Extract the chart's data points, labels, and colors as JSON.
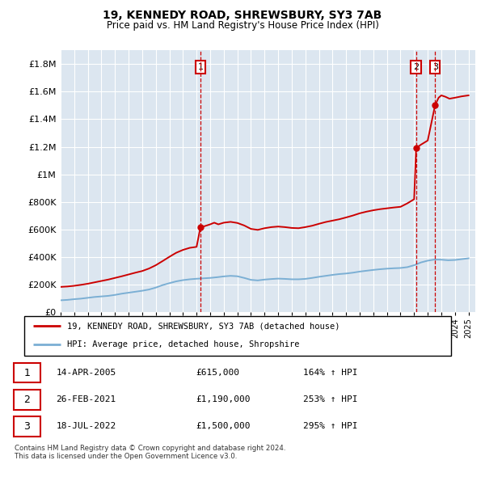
{
  "title1": "19, KENNEDY ROAD, SHREWSBURY, SY3 7AB",
  "title2": "Price paid vs. HM Land Registry's House Price Index (HPI)",
  "ytick_values": [
    0,
    200000,
    400000,
    600000,
    800000,
    1000000,
    1200000,
    1400000,
    1600000,
    1800000
  ],
  "ytick_labels": [
    "£0",
    "£200K",
    "£400K",
    "£600K",
    "£800K",
    "£1M",
    "£1.2M",
    "£1.4M",
    "£1.6M",
    "£1.8M"
  ],
  "ylim": [
    0,
    1900000
  ],
  "xlim_start": 1995.0,
  "xlim_end": 2025.5,
  "background_color": "#dce6f0",
  "grid_color": "#ffffff",
  "hpi_color": "#7bafd4",
  "price_color": "#cc0000",
  "annotation_box_color": "#cc0000",
  "annotations": [
    {
      "num": 1,
      "x_year": 2005.28,
      "y": 615000,
      "label": "1"
    },
    {
      "num": 2,
      "x_year": 2021.15,
      "y": 1190000,
      "label": "2"
    },
    {
      "num": 3,
      "x_year": 2022.54,
      "y": 1500000,
      "label": "3"
    }
  ],
  "legend_entries": [
    {
      "label": "19, KENNEDY ROAD, SHREWSBURY, SY3 7AB (detached house)",
      "color": "#cc0000"
    },
    {
      "label": "HPI: Average price, detached house, Shropshire",
      "color": "#7bafd4"
    }
  ],
  "table_rows": [
    {
      "num": "1",
      "date": "14-APR-2005",
      "price": "£615,000",
      "change": "164% ↑ HPI"
    },
    {
      "num": "2",
      "date": "26-FEB-2021",
      "price": "£1,190,000",
      "change": "253% ↑ HPI"
    },
    {
      "num": "3",
      "date": "18-JUL-2022",
      "price": "£1,500,000",
      "change": "295% ↑ HPI"
    }
  ],
  "footnote": "Contains HM Land Registry data © Crown copyright and database right 2024.\nThis data is licensed under the Open Government Licence v3.0.",
  "hpi_data": {
    "years": [
      1995.0,
      1995.5,
      1996.0,
      1996.5,
      1997.0,
      1997.5,
      1998.0,
      1998.5,
      1999.0,
      1999.5,
      2000.0,
      2000.5,
      2001.0,
      2001.5,
      2002.0,
      2002.5,
      2003.0,
      2003.5,
      2004.0,
      2004.5,
      2005.0,
      2005.5,
      2006.0,
      2006.5,
      2007.0,
      2007.5,
      2008.0,
      2008.5,
      2009.0,
      2009.5,
      2010.0,
      2010.5,
      2011.0,
      2011.5,
      2012.0,
      2012.5,
      2013.0,
      2013.5,
      2014.0,
      2014.5,
      2015.0,
      2015.5,
      2016.0,
      2016.5,
      2017.0,
      2017.5,
      2018.0,
      2018.5,
      2019.0,
      2019.5,
      2020.0,
      2020.5,
      2021.0,
      2021.5,
      2022.0,
      2022.5,
      2023.0,
      2023.5,
      2024.0,
      2024.5,
      2025.0
    ],
    "values": [
      88000,
      91000,
      96000,
      100000,
      106000,
      112000,
      116000,
      120000,
      127000,
      136000,
      143000,
      150000,
      157000,
      166000,
      180000,
      198000,
      212000,
      225000,
      234000,
      240000,
      244000,
      247000,
      250000,
      255000,
      261000,
      265000,
      262000,
      250000,
      236000,
      232000,
      238000,
      242000,
      245000,
      243000,
      240000,
      240000,
      243000,
      250000,
      258000,
      265000,
      272000,
      278000,
      282000,
      288000,
      296000,
      302000,
      308000,
      313000,
      317000,
      320000,
      322000,
      328000,
      342000,
      362000,
      375000,
      383000,
      382000,
      378000,
      380000,
      386000,
      392000
    ]
  },
  "price_data": {
    "years": [
      1995.0,
      1995.5,
      1996.0,
      1996.5,
      1997.0,
      1997.5,
      1998.0,
      1998.5,
      1999.0,
      1999.5,
      2000.0,
      2000.5,
      2001.0,
      2001.5,
      2002.0,
      2002.5,
      2003.0,
      2003.5,
      2004.0,
      2004.5,
      2005.0,
      2005.28,
      2005.5,
      2006.0,
      2006.3,
      2006.6,
      2007.0,
      2007.5,
      2008.0,
      2008.5,
      2009.0,
      2009.5,
      2010.0,
      2010.5,
      2011.0,
      2011.5,
      2012.0,
      2012.5,
      2013.0,
      2013.5,
      2014.0,
      2014.5,
      2015.0,
      2015.5,
      2016.0,
      2016.5,
      2017.0,
      2017.5,
      2018.0,
      2018.5,
      2019.0,
      2019.5,
      2020.0,
      2020.5,
      2021.0,
      2021.15,
      2021.5,
      2022.0,
      2022.54,
      2022.8,
      2023.0,
      2023.3,
      2023.6,
      2024.0,
      2024.5,
      2025.0
    ],
    "values": [
      185000,
      188000,
      193000,
      200000,
      208000,
      218000,
      228000,
      238000,
      250000,
      262000,
      275000,
      288000,
      300000,
      318000,
      342000,
      372000,
      403000,
      432000,
      453000,
      468000,
      475000,
      615000,
      622000,
      638000,
      650000,
      638000,
      650000,
      656000,
      648000,
      630000,
      605000,
      598000,
      610000,
      618000,
      622000,
      618000,
      612000,
      610000,
      618000,
      628000,
      642000,
      655000,
      665000,
      675000,
      688000,
      702000,
      718000,
      730000,
      740000,
      748000,
      754000,
      760000,
      765000,
      790000,
      820000,
      1190000,
      1215000,
      1245000,
      1500000,
      1555000,
      1572000,
      1562000,
      1548000,
      1555000,
      1565000,
      1572000
    ]
  }
}
